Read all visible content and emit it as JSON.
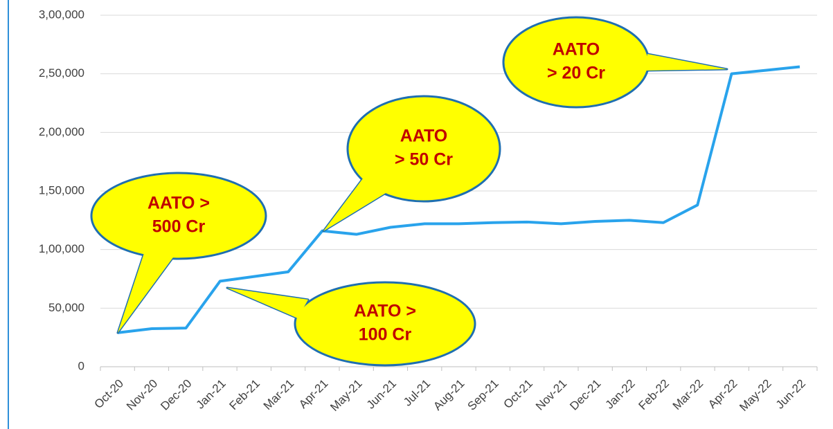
{
  "chart_data": {
    "type": "line",
    "categories": [
      "Oct-20",
      "Nov-20",
      "Dec-20",
      "Jan-21",
      "Feb-21",
      "Mar-21",
      "Apr-21",
      "May-21",
      "Jun-21",
      "Jul-21",
      "Aug-21",
      "Sep-21",
      "Oct-21",
      "Nov-21",
      "Dec-21",
      "Jan-22",
      "Feb-22",
      "Mar-22",
      "Apr-22",
      "May-22",
      "Jun-22"
    ],
    "series": [
      {
        "color": "#29a3ec",
        "values": [
          29000,
          32500,
          33000,
          73000,
          77000,
          81000,
          116000,
          113000,
          119000,
          122000,
          122000,
          123000,
          123500,
          122000,
          124000,
          125000,
          123000,
          138000,
          250000,
          253000,
          256000
        ]
      }
    ],
    "ylim": [
      0,
      300000
    ],
    "yticks": [
      0,
      {
        "value": 50000,
        "label": "50,000"
      },
      {
        "value": 100000,
        "label": "1,00,000"
      },
      {
        "value": 150000,
        "label": "1,50,000"
      },
      {
        "value": 200000,
        "label": "2,00,000"
      },
      {
        "value": 250000,
        "label": "2,50,000"
      },
      {
        "value": 300000,
        "label": "3,00,000"
      }
    ],
    "grid": true,
    "annotations": [
      {
        "lines": [
          "AATO >",
          "500 Cr"
        ]
      },
      {
        "lines": [
          "AATO",
          "> 50 Cr"
        ]
      },
      {
        "lines": [
          "AATO",
          "> 20 Cr"
        ]
      },
      {
        "lines": [
          "AATO >",
          "100 Cr"
        ]
      }
    ]
  }
}
